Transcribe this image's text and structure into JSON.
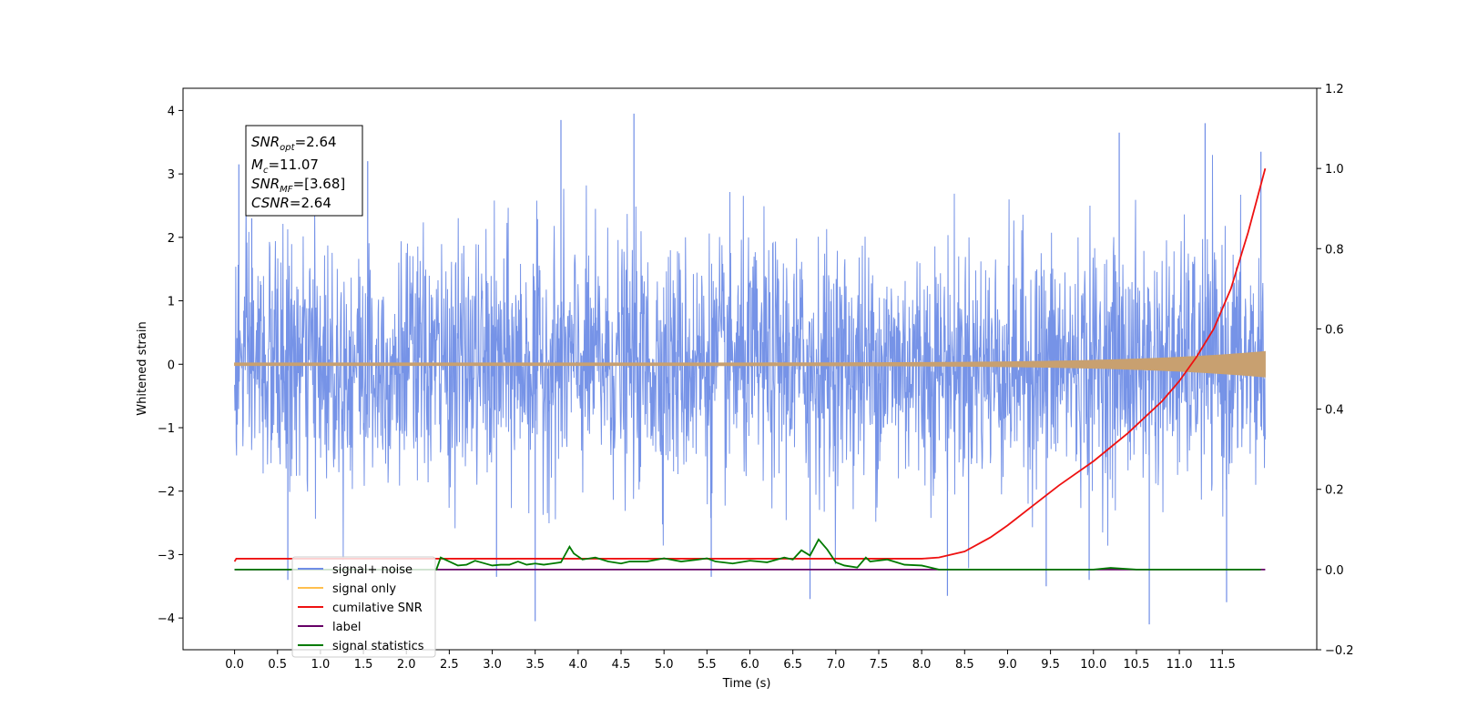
{
  "chart_data": {
    "type": "line",
    "xlabel": "Time (s)",
    "ylabel": "Whitened strain",
    "xlim": [
      -0.6,
      12.6
    ],
    "ylim": [
      -4.5,
      4.35
    ],
    "y2lim": [
      -0.2,
      1.2
    ],
    "xticks": [
      "0.0",
      "0.5",
      "1.0",
      "1.5",
      "2.0",
      "2.5",
      "3.0",
      "3.5",
      "4.0",
      "4.5",
      "5.0",
      "5.5",
      "6.0",
      "6.5",
      "7.0",
      "7.5",
      "8.0",
      "8.5",
      "9.0",
      "9.5",
      "10.0",
      "10.5",
      "11.0",
      "11.5"
    ],
    "yticks": [
      "−4",
      "−3",
      "−2",
      "−1",
      "0",
      "1",
      "2",
      "3",
      "4"
    ],
    "y2ticks": [
      "−0.2",
      "0.0",
      "0.2",
      "0.4",
      "0.6",
      "0.8",
      "1.0",
      "1.2"
    ],
    "annotation": {
      "lines": [
        {
          "main": "SNR",
          "sub": "opt",
          "rest": "=2.64"
        },
        {
          "main": "M",
          "sub": "c",
          "rest": "=11.07"
        },
        {
          "main": "SNR",
          "sub": "MF",
          "rest": "=[3.68]"
        },
        {
          "main": "CSNR",
          "sub": "",
          "rest": "=2.64"
        }
      ]
    },
    "legend": {
      "placement": "lower-left",
      "entries": [
        "signal+ noise",
        "signal only",
        "cumilative SNR",
        "label",
        "signal statistics"
      ],
      "colors": [
        "#6f8de6",
        "#ffbf4d",
        "#ee1111",
        "#660066",
        "#007a00"
      ]
    },
    "series": [
      {
        "name": "signal+ noise",
        "axis": "left",
        "color": "#6f8de6",
        "style": "noise",
        "sigma": 1.0,
        "x_range": [
          0.0,
          12.0
        ],
        "extremes": [
          {
            "x": 0.05,
            "y": 3.15
          },
          {
            "x": 0.2,
            "y": 2.3
          },
          {
            "x": 0.62,
            "y": -3.4
          },
          {
            "x": 1.55,
            "y": 3.2
          },
          {
            "x": 3.05,
            "y": -3.35
          },
          {
            "x": 3.5,
            "y": -4.05
          },
          {
            "x": 3.8,
            "y": 3.85
          },
          {
            "x": 4.65,
            "y": 3.95
          },
          {
            "x": 5.55,
            "y": -3.35
          },
          {
            "x": 6.7,
            "y": -3.7
          },
          {
            "x": 8.3,
            "y": -3.65
          },
          {
            "x": 9.45,
            "y": -3.5
          },
          {
            "x": 9.95,
            "y": -3.4
          },
          {
            "x": 10.3,
            "y": 3.65
          },
          {
            "x": 10.65,
            "y": -4.1
          },
          {
            "x": 11.3,
            "y": 3.8
          },
          {
            "x": 11.55,
            "y": -3.75
          },
          {
            "x": 11.95,
            "y": 3.35
          }
        ]
      },
      {
        "name": "signal only",
        "axis": "left",
        "color": "#ffbf4d",
        "style": "chirp",
        "amplitude_start": 0.02,
        "amplitude_end": 0.2,
        "x_range": [
          0.0,
          12.0
        ]
      },
      {
        "name": "cumilative SNR",
        "axis": "right",
        "color": "#ee1111",
        "x": [
          0.0,
          0.02,
          1.0,
          2.0,
          3.0,
          4.0,
          5.0,
          6.0,
          7.0,
          8.0,
          8.2,
          8.5,
          8.8,
          9.0,
          9.3,
          9.6,
          10.0,
          10.4,
          10.8,
          11.0,
          11.2,
          11.4,
          11.6,
          11.8,
          12.0
        ],
        "y": [
          0.02,
          0.027,
          0.027,
          0.027,
          0.027,
          0.027,
          0.027,
          0.027,
          0.027,
          0.027,
          0.03,
          0.045,
          0.08,
          0.11,
          0.16,
          0.21,
          0.27,
          0.34,
          0.42,
          0.47,
          0.53,
          0.6,
          0.7,
          0.84,
          1.0
        ]
      },
      {
        "name": "label",
        "axis": "right",
        "color": "#660066",
        "x": [
          0.0,
          12.0
        ],
        "y": [
          0.0,
          0.0
        ]
      },
      {
        "name": "signal statistics",
        "axis": "right",
        "color": "#007a00",
        "x": [
          0.0,
          2.35,
          2.4,
          2.5,
          2.6,
          2.7,
          2.8,
          2.9,
          3.0,
          3.1,
          3.2,
          3.3,
          3.4,
          3.5,
          3.6,
          3.7,
          3.8,
          3.9,
          3.95,
          4.05,
          4.2,
          4.35,
          4.5,
          4.6,
          4.8,
          5.0,
          5.2,
          5.4,
          5.5,
          5.6,
          5.8,
          6.0,
          6.2,
          6.4,
          6.5,
          6.6,
          6.7,
          6.8,
          6.9,
          7.0,
          7.1,
          7.25,
          7.35,
          7.4,
          7.6,
          7.8,
          8.0,
          8.2,
          8.4,
          8.6,
          9.0,
          9.5,
          10.0,
          10.2,
          10.5,
          11.0,
          11.5,
          11.95
        ],
        "y": [
          0.0,
          0.0,
          0.03,
          0.02,
          0.01,
          0.012,
          0.022,
          0.016,
          0.01,
          0.012,
          0.012,
          0.02,
          0.012,
          0.015,
          0.012,
          0.015,
          0.018,
          0.057,
          0.04,
          0.025,
          0.03,
          0.02,
          0.015,
          0.02,
          0.02,
          0.028,
          0.02,
          0.025,
          0.028,
          0.02,
          0.015,
          0.022,
          0.018,
          0.03,
          0.025,
          0.048,
          0.035,
          0.075,
          0.05,
          0.018,
          0.01,
          0.005,
          0.03,
          0.02,
          0.025,
          0.012,
          0.01,
          0.0,
          0.0,
          0.0,
          0.0,
          0.0,
          0.0,
          0.004,
          0.0,
          0.0,
          0.0,
          0.0
        ]
      }
    ]
  }
}
